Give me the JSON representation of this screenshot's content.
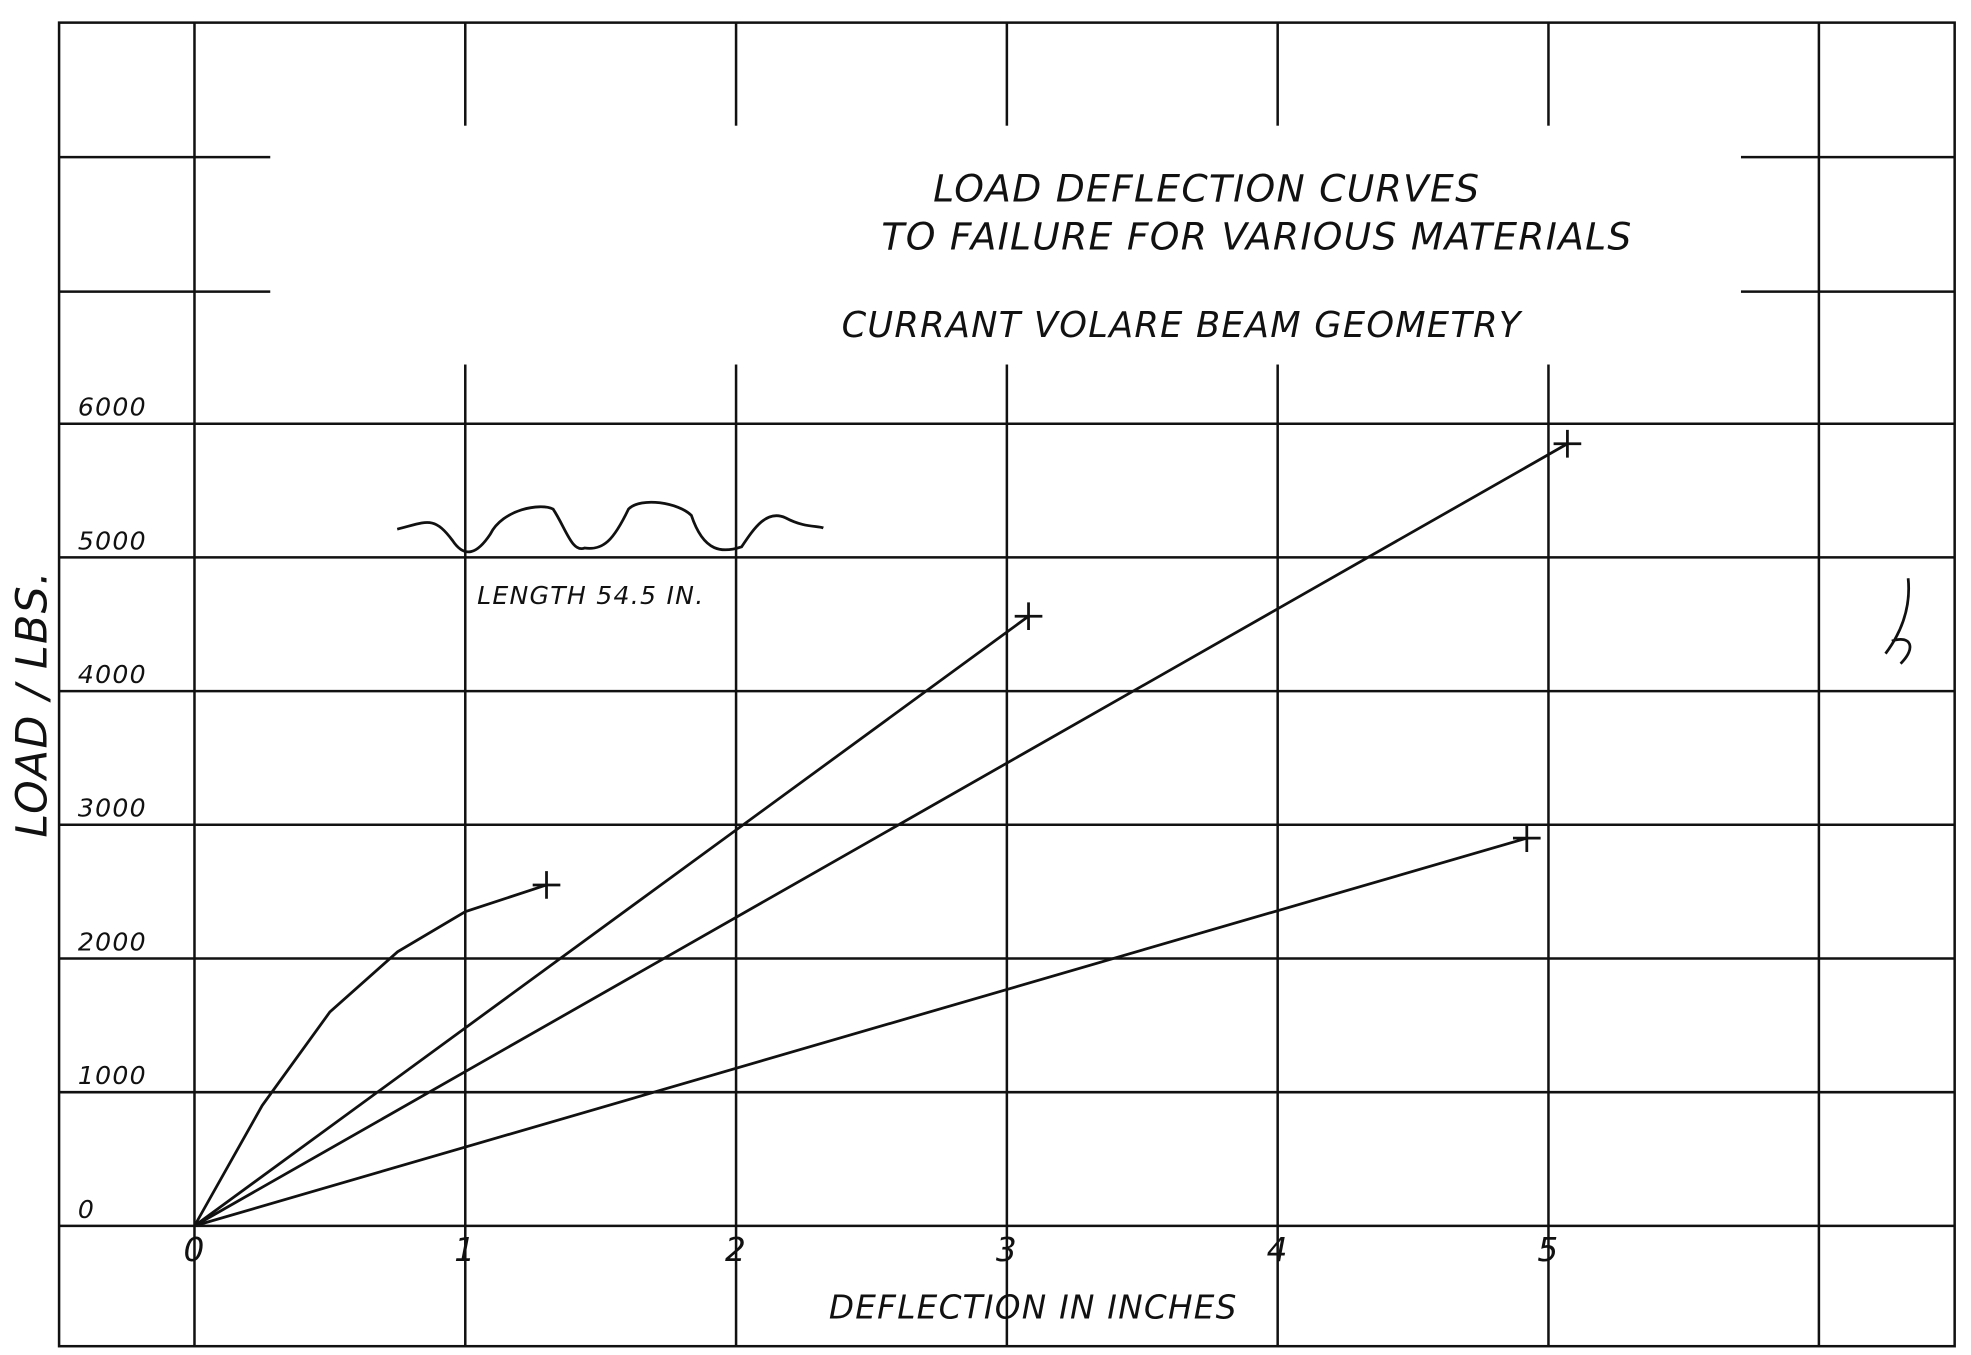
{
  "chart_data": {
    "type": "line",
    "title": [
      "LOAD DEFLECTION CURVES",
      "TO FAILURE FOR VARIOUS MATERIALS"
    ],
    "subtitle": "CURRANT VOLARE BEAM GEOMETRY",
    "annotation": "LENGTH 54.5 IN.",
    "x_label": "DEFLECTION IN INCHES",
    "y_label": "LOAD / LBS.",
    "xlim": [
      -0.5,
      6.5
    ],
    "ylim": [
      -900,
      9000
    ],
    "xticks": [
      0,
      1,
      2,
      3,
      4,
      5
    ],
    "yticks": [
      0,
      1000,
      2000,
      3000,
      4000,
      5000,
      6000
    ],
    "grid": true,
    "series": [
      {
        "color": "#111111",
        "x": [
          0,
          0.25,
          0.5,
          0.75,
          1.0,
          1.3
        ],
        "values": [
          0,
          900,
          1600,
          2050,
          2350,
          2550
        ]
      },
      {
        "color": "#111111",
        "x": [
          0,
          3.08
        ],
        "values": [
          0,
          4560
        ]
      },
      {
        "color": "#111111",
        "x": [
          0,
          5.07
        ],
        "values": [
          0,
          5850
        ]
      },
      {
        "color": "#111111",
        "x": [
          0,
          4.92
        ],
        "values": [
          0,
          2900
        ]
      }
    ]
  }
}
